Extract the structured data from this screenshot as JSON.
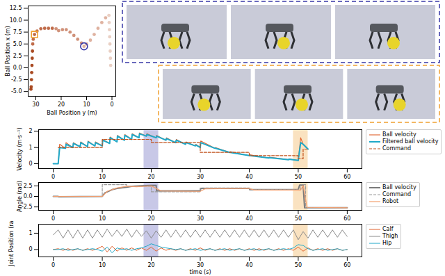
{
  "chart_data": [
    {
      "type": "scatter",
      "xlabel": "Ball Position y (m)",
      "ylabel": "Ball Position x (m)",
      "x": [
        0.5,
        0.6,
        0.7,
        0.8,
        0.9,
        1.0,
        1.1,
        1.2,
        2.5,
        4,
        5.5,
        7,
        8.5,
        10,
        11,
        12,
        13.5,
        15,
        16.5,
        18,
        19.5,
        21,
        22,
        23.5,
        25,
        26.5,
        28,
        29.5,
        30.5,
        31,
        31.2,
        31.3,
        31.4,
        31.5,
        31.6,
        31.7,
        31.8,
        31.9
      ],
      "values": [
        0.5,
        2,
        3.5,
        5,
        6.5,
        8,
        9.5,
        11,
        10.5,
        9.5,
        8.3,
        7,
        5.8,
        5,
        4.5,
        5.2,
        6,
        6.8,
        7.5,
        8,
        8,
        7.8,
        8.2,
        8.3,
        8.3,
        8.3,
        8.2,
        7.7,
        7,
        6,
        5,
        3.5,
        2,
        0.5,
        -1,
        -2.5,
        -4,
        -4.5
      ],
      "colors": [
        "#ead0c4",
        "#ead0c4",
        "#ead0c4",
        "#ead0c4",
        "#ead0c4",
        "#ead0c4",
        "#ead0c4",
        "#ead0c4",
        "#dfb2a0",
        "#dfb2a0",
        "#dfb2a0",
        "#dfb2a0",
        "#dfb2a0",
        "#dfb2a0",
        "#dfb2a0",
        "#d0927a",
        "#d0927a",
        "#d0927a",
        "#d0927a",
        "#d0927a",
        "#d0927a",
        "#d0927a",
        "#d0927a",
        "#c06c4a",
        "#c06c4a",
        "#c06c4a",
        "#c06c4a",
        "#c06c4a",
        "#c06c4a",
        "#c06c4a",
        "#c06c4a",
        "#a94a22",
        "#a94a22",
        "#a94a22",
        "#a94a22",
        "#a94a22",
        "#a94a22",
        "#a94a22"
      ],
      "highlights": [
        {
          "x": 11,
          "y": 4.5,
          "color": "#3a3aa8",
          "marker": "circle"
        },
        {
          "x": 30.5,
          "y": 7,
          "color": "#f0a030",
          "marker": "square"
        }
      ],
      "xlim": [
        33,
        -1.5
      ],
      "xticks": [
        30,
        20,
        10,
        0
      ],
      "ylim": [
        -6,
        13
      ],
      "yticks": [
        {
          "value": -5,
          "label": "-5.0"
        },
        -2.5,
        {
          "value": 0,
          "label": "0.0"
        },
        2.5,
        {
          "value": 5,
          "label": "5.0"
        },
        7.5,
        {
          "value": 10,
          "label": "10.0"
        },
        12.5
      ]
    },
    {
      "type": "line",
      "ylabel": "Velocity (m·s⁻¹)",
      "legend": "right",
      "x": [
        0,
        1,
        1.3,
        2.5,
        2.6,
        4,
        4.1,
        5.5,
        5.6,
        7,
        7.1,
        8.5,
        8.6,
        10,
        10.1,
        11.5,
        11.6,
        13,
        13.1,
        14.5,
        14.6,
        16,
        16.1,
        17.5,
        17.6,
        19,
        19.1,
        21,
        21.1,
        23,
        23.1,
        25,
        25.1,
        27,
        27.1,
        29,
        29.1,
        30,
        30.1,
        33,
        33.1,
        36,
        36.1,
        40,
        40.1,
        44,
        44.1,
        48,
        48.1,
        50,
        50.5,
        51,
        52
      ],
      "series": [
        {
          "name": "Ball velocity",
          "color": "#e0602a",
          "line_style": "solid",
          "values": [
            0,
            0,
            1.2,
            0.95,
            1.3,
            1.0,
            1.3,
            1.05,
            1.35,
            1.05,
            1.4,
            1.1,
            1.35,
            1.1,
            1.5,
            1.25,
            1.65,
            1.35,
            1.75,
            1.45,
            1.8,
            1.5,
            1.85,
            1.6,
            1.9,
            1.7,
            1.85,
            1.6,
            1.75,
            1.45,
            1.6,
            1.3,
            1.5,
            1.2,
            1.35,
            1.1,
            1.2,
            1.0,
            1.4,
            0.95,
            1.0,
            0.7,
            0.75,
            0.5,
            0.55,
            0.35,
            0.4,
            0.25,
            0.3,
            0.2,
            1.6,
            1.2,
            0.9
          ]
        },
        {
          "name": "Filtered ball velocity",
          "color": "#1fa8c8",
          "line_style": "solid",
          "values": [
            0,
            0,
            1.0,
            0.95,
            1.2,
            1.0,
            1.25,
            1.05,
            1.3,
            1.05,
            1.35,
            1.1,
            1.3,
            1.1,
            1.45,
            1.25,
            1.6,
            1.35,
            1.7,
            1.45,
            1.75,
            1.5,
            1.8,
            1.6,
            1.85,
            1.7,
            1.8,
            1.6,
            1.7,
            1.45,
            1.55,
            1.3,
            1.45,
            1.2,
            1.3,
            1.1,
            1.15,
            1.0,
            1.3,
            0.95,
            0.95,
            0.7,
            0.7,
            0.5,
            0.5,
            0.35,
            0.38,
            0.25,
            0.28,
            0.2,
            1.3,
            1.2,
            0.9
          ]
        },
        {
          "name": "Command",
          "color": "#c0501a",
          "line_style": "dashed",
          "x": [
            1,
            10,
            10,
            20,
            20,
            30,
            30,
            40,
            40,
            50,
            50,
            51,
            51,
            52
          ],
          "values": [
            1.0,
            1.0,
            1.5,
            1.5,
            1.3,
            1.3,
            0.7,
            0.7,
            0.5,
            0.5,
            0.3,
            0.3,
            0.9,
            0.9
          ]
        }
      ],
      "bands": [
        {
          "x0": 18.5,
          "x1": 21.5,
          "color": "#4a4ab0"
        },
        {
          "x0": 49,
          "x1": 52,
          "color": "#f0a030"
        }
      ],
      "xlim": [
        -3,
        63
      ],
      "xticks": [
        0,
        10,
        20,
        30,
        40,
        50,
        60
      ],
      "ylim": [
        -0.3,
        2.1
      ],
      "yticks": [
        0,
        1,
        2
      ]
    },
    {
      "type": "line",
      "ylabel": "Angle (rad)",
      "legend": "right",
      "x": [
        0,
        1,
        1.1,
        10,
        10.5,
        12,
        13,
        15,
        16,
        18,
        20,
        21,
        21.1,
        30,
        30.1,
        40,
        40.1,
        50,
        50.3,
        51,
        51.3,
        60
      ],
      "series": [
        {
          "name": "Ball velocity",
          "color": "#7a7a7a",
          "line_style": "solid",
          "values": [
            0,
            0,
            -0.1,
            0,
            0.8,
            1.6,
            1.9,
            2.2,
            2.4,
            2.5,
            2.6,
            2.6,
            1.3,
            1.3,
            1.9,
            1.9,
            1.6,
            1.6,
            2.7,
            2.7,
            -2.7,
            -2.7
          ]
        },
        {
          "name": "Command",
          "color": "#9a9a9a",
          "line_style": "dashed",
          "x": [
            0,
            10,
            10,
            15,
            15,
            20,
            20,
            30,
            30,
            40,
            40,
            50.5,
            50.5,
            51.5,
            51.5,
            60
          ],
          "values": [
            0,
            0,
            2.8,
            2.8,
            2.4,
            2.4,
            1.1,
            1.1,
            2.0,
            2.0,
            1.6,
            1.6,
            2.8,
            2.8,
            -2.7,
            -2.7
          ]
        },
        {
          "name": "Robot",
          "color": "#f4a070",
          "line_style": "solid",
          "x": [
            0,
            10,
            11,
            13,
            15,
            17,
            20,
            22,
            30,
            31,
            40,
            41,
            50.5,
            51,
            51.8,
            60
          ],
          "values": [
            0,
            0,
            1.2,
            2.0,
            2.4,
            2.3,
            2.5,
            1.3,
            1.2,
            1.8,
            1.9,
            1.5,
            1.5,
            2.6,
            -2.6,
            -2.7
          ]
        }
      ],
      "bands": [
        {
          "x0": 18.5,
          "x1": 21.5,
          "color": "#4a4ab0"
        },
        {
          "x0": 49,
          "x1": 52,
          "color": "#f0a030"
        }
      ],
      "xlim": [
        -3,
        63
      ],
      "xticks": [
        0,
        10,
        20,
        30,
        40,
        50,
        60
      ],
      "ylim": [
        -3.3,
        3.3
      ],
      "yticks": [
        -2.5,
        {
          "value": 0,
          "label": "0.0"
        },
        2.5
      ]
    },
    {
      "type": "line",
      "ylabel": "Joint Position (rad)",
      "xlabel": "time (s)",
      "legend": "right",
      "x": [
        0,
        1,
        2,
        3,
        4,
        5,
        6,
        7,
        8,
        9,
        10,
        11,
        12,
        13,
        14,
        15,
        16,
        17,
        18,
        19,
        20,
        21,
        22,
        23,
        24,
        25,
        26,
        27,
        28,
        29,
        30,
        31,
        32,
        33,
        34,
        35,
        36,
        37,
        38,
        39,
        40,
        41,
        42,
        43,
        44,
        45,
        46,
        47,
        48,
        49,
        50,
        51,
        52,
        53,
        54,
        55,
        56,
        57,
        58,
        59,
        60
      ],
      "series": [
        {
          "name": "Calf",
          "color": "#e0602a",
          "line_style": "solid",
          "values": [
            0.0,
            0.05,
            -0.05,
            0.05,
            -0.05,
            0.05,
            -0.05,
            0.05,
            -0.05,
            0.05,
            0.2,
            -0.15,
            0.2,
            -0.1,
            0.1,
            -0.05,
            0.1,
            -0.05,
            0.1,
            -0.05,
            0.15,
            -0.1,
            0.1,
            -0.05,
            0.05,
            -0.05,
            0.05,
            -0.05,
            0.05,
            -0.05,
            0.1,
            -0.05,
            0.05,
            -0.05,
            0.05,
            -0.05,
            0.05,
            -0.05,
            0.05,
            -0.05,
            0.05,
            -0.05,
            0.05,
            -0.05,
            0.05,
            -0.05,
            0.05,
            -0.05,
            0.05,
            -0.05,
            0.15,
            -0.1,
            0.1,
            -0.05,
            0.05,
            -0.05,
            0.05,
            -0.05,
            0.05,
            -0.05,
            0.0
          ]
        },
        {
          "name": "Thigh",
          "color": "#8a8a8a",
          "line_style": "solid",
          "values": [
            0.9,
            1.2,
            0.7,
            1.2,
            0.7,
            1.2,
            0.7,
            1.2,
            0.7,
            1.2,
            0.75,
            1.25,
            0.8,
            1.2,
            0.8,
            1.25,
            0.75,
            1.2,
            0.8,
            1.15,
            0.7,
            1.15,
            0.75,
            1.2,
            0.75,
            1.2,
            0.75,
            1.2,
            0.75,
            1.2,
            0.75,
            1.2,
            0.75,
            1.2,
            0.75,
            1.2,
            0.75,
            1.2,
            0.75,
            1.2,
            0.75,
            1.2,
            0.75,
            1.2,
            0.75,
            1.2,
            0.75,
            1.2,
            0.75,
            1.2,
            0.6,
            1.1,
            0.7,
            1.2,
            0.75,
            1.2,
            0.75,
            1.2,
            0.75,
            1.2,
            0.8
          ]
        },
        {
          "name": "Hip",
          "color": "#1fa8c8",
          "line_style": "solid",
          "values": [
            0.0,
            0.0,
            0.05,
            -0.05,
            0.0,
            0.05,
            -0.05,
            0.0,
            0.05,
            0.0,
            -0.1,
            0.15,
            -0.2,
            0.1,
            0.0,
            0.05,
            -0.05,
            0.05,
            0.1,
            0.2,
            0.35,
            0.25,
            0.15,
            0.1,
            0.05,
            0.0,
            0.05,
            -0.05,
            0.0,
            0.05,
            -0.05,
            0.0,
            0.05,
            -0.05,
            0.0,
            0.05,
            -0.05,
            0.0,
            0.05,
            -0.05,
            0.0,
            0.05,
            -0.05,
            0.0,
            0.05,
            -0.05,
            0.0,
            0.05,
            0.0,
            0.1,
            0.3,
            0.25,
            0.05,
            -0.05,
            0.0,
            0.05,
            -0.05,
            0.0,
            0.05,
            -0.05,
            0.0
          ]
        }
      ],
      "bands": [
        {
          "x0": 18.5,
          "x1": 21.5,
          "color": "#4a4ab0"
        },
        {
          "x0": 49,
          "x1": 52,
          "color": "#f0a030"
        }
      ],
      "xlim": [
        -3,
        63
      ],
      "xticks": [
        0,
        10,
        20,
        30,
        40,
        50,
        60
      ],
      "ylim": [
        -0.45,
        1.55
      ],
      "yticks": [
        0,
        1
      ]
    }
  ]
}
